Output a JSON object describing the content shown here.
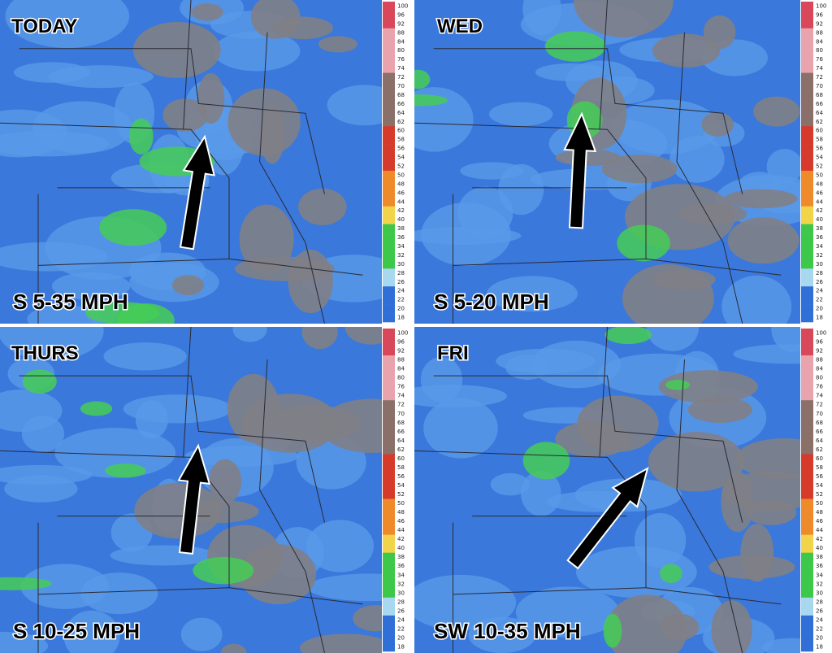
{
  "panels": [
    {
      "label": "TODAY",
      "wind": "S 5-35 MPH"
    },
    {
      "label": "WED",
      "wind": "S 5-20 MPH"
    },
    {
      "label": "THURS",
      "wind": "S 10-25 MPH"
    },
    {
      "label": "FRI",
      "wind": "SW 10-35 MPH"
    }
  ],
  "colorbar": {
    "labels": [
      100,
      96,
      92,
      88,
      84,
      80,
      76,
      74,
      72,
      70,
      68,
      66,
      64,
      62,
      60,
      58,
      56,
      54,
      52,
      50,
      48,
      46,
      44,
      42,
      40,
      38,
      36,
      34,
      32,
      30,
      28,
      26,
      24,
      22,
      20,
      18
    ]
  }
}
